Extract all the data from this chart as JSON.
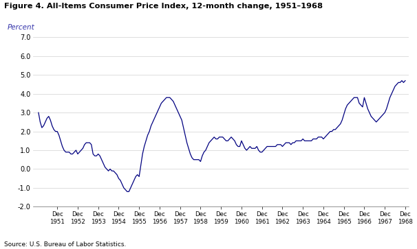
{
  "title": "Figure 4. All-Items Consumer Price Index, 12-month change, 1951–1968",
  "ylabel": "Percent",
  "source": "Source: U.S. Bureau of Labor Statistics.",
  "ylim": [
    -2.0,
    7.0
  ],
  "yticks": [
    -2.0,
    -1.0,
    0.0,
    1.0,
    2.0,
    3.0,
    4.0,
    5.0,
    6.0,
    7.0
  ],
  "line_color": "#000080",
  "background_color": "#ffffff",
  "x_labels": [
    "Dec\n1951",
    "Dec\n1952",
    "Dec\n1953",
    "Dec\n1954",
    "Dec\n1955",
    "Dec\n1956",
    "Dec\n1957",
    "Dec\n1958",
    "Dec\n1959",
    "Dec\n1960",
    "Dec\n1961",
    "Dec\n1962",
    "Dec\n1963",
    "Dec\n1964",
    "Dec\n1965",
    "Dec\n1966",
    "Dec\n1967",
    "Dec\n1968"
  ],
  "monthly_data": [
    3.0,
    2.5,
    2.2,
    2.3,
    2.5,
    2.7,
    2.8,
    2.6,
    2.3,
    2.1,
    2.0,
    2.0,
    1.8,
    1.5,
    1.2,
    1.0,
    0.9,
    0.9,
    0.9,
    0.8,
    0.8,
    0.9,
    1.0,
    0.8,
    0.9,
    1.0,
    1.1,
    1.3,
    1.4,
    1.4,
    1.4,
    1.3,
    0.8,
    0.7,
    0.7,
    0.8,
    0.7,
    0.5,
    0.3,
    0.1,
    0.0,
    -0.1,
    0.0,
    -0.1,
    -0.1,
    -0.2,
    -0.3,
    -0.5,
    -0.6,
    -0.8,
    -1.0,
    -1.1,
    -1.2,
    -1.2,
    -1.0,
    -0.8,
    -0.6,
    -0.4,
    -0.3,
    -0.4,
    0.2,
    0.8,
    1.2,
    1.5,
    1.8,
    2.0,
    2.3,
    2.5,
    2.7,
    2.9,
    3.1,
    3.3,
    3.5,
    3.6,
    3.7,
    3.8,
    3.8,
    3.8,
    3.7,
    3.6,
    3.4,
    3.2,
    3.0,
    2.8,
    2.6,
    2.2,
    1.8,
    1.4,
    1.1,
    0.8,
    0.6,
    0.5,
    0.5,
    0.5,
    0.5,
    0.4,
    0.7,
    0.9,
    1.0,
    1.2,
    1.4,
    1.5,
    1.6,
    1.7,
    1.6,
    1.6,
    1.7,
    1.7,
    1.7,
    1.6,
    1.5,
    1.5,
    1.6,
    1.7,
    1.6,
    1.5,
    1.3,
    1.2,
    1.2,
    1.5,
    1.3,
    1.1,
    1.0,
    1.1,
    1.2,
    1.1,
    1.1,
    1.1,
    1.2,
    1.0,
    0.9,
    0.9,
    1.0,
    1.1,
    1.2,
    1.2,
    1.2,
    1.2,
    1.2,
    1.2,
    1.3,
    1.3,
    1.3,
    1.2,
    1.3,
    1.4,
    1.4,
    1.4,
    1.3,
    1.4,
    1.4,
    1.5,
    1.5,
    1.5,
    1.5,
    1.6,
    1.5,
    1.5,
    1.5,
    1.5,
    1.5,
    1.6,
    1.6,
    1.6,
    1.7,
    1.7,
    1.7,
    1.6,
    1.7,
    1.8,
    1.9,
    2.0,
    2.0,
    2.1,
    2.1,
    2.2,
    2.3,
    2.4,
    2.6,
    2.9,
    3.2,
    3.4,
    3.5,
    3.6,
    3.7,
    3.8,
    3.8,
    3.8,
    3.5,
    3.4,
    3.3,
    3.8,
    3.5,
    3.2,
    3.0,
    2.8,
    2.7,
    2.6,
    2.5,
    2.6,
    2.7,
    2.8,
    2.9,
    3.0,
    3.2,
    3.5,
    3.8,
    4.0,
    4.2,
    4.4,
    4.5,
    4.6,
    4.6,
    4.7,
    4.6,
    4.7
  ],
  "start_year": 1951
}
